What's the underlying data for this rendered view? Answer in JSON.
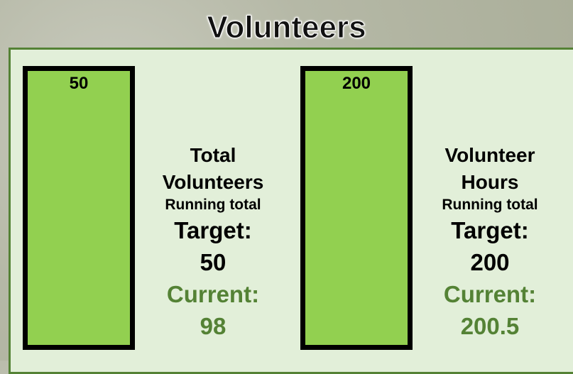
{
  "title": "Volunteers",
  "gauges": [
    {
      "label": "Total Volunteers",
      "sublabel": "Running total",
      "target_label": "Target:",
      "target": 50,
      "current_label": "Current:",
      "current": 98,
      "color": "#92d050"
    },
    {
      "label": "Volunteer Hours",
      "sublabel": "Running total",
      "target_label": "Target:",
      "target": 200,
      "current_label": "Current:",
      "current": 200.5,
      "color": "#92d050"
    }
  ]
}
